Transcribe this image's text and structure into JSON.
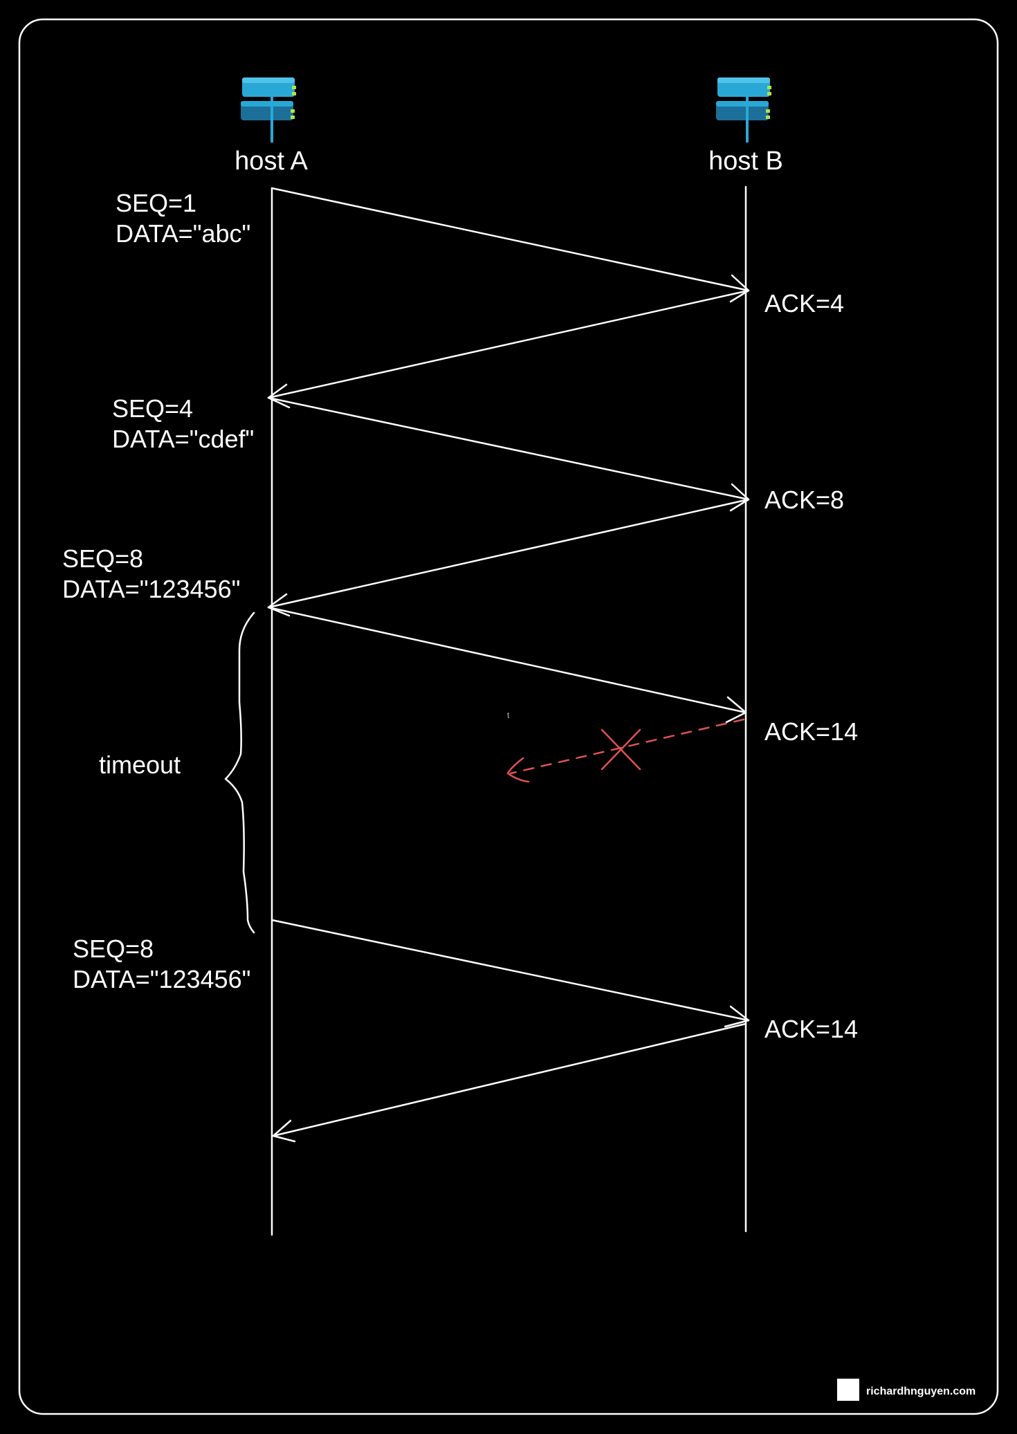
{
  "hosts": {
    "a": {
      "label": "host A",
      "icon": "server-icon"
    },
    "b": {
      "label": "host B",
      "icon": "server-icon"
    }
  },
  "segments": [
    {
      "seq": "SEQ=1",
      "data": "DATA=\"abc\""
    },
    {
      "seq": "SEQ=4",
      "data": "DATA=\"cdef\""
    },
    {
      "seq": "SEQ=8",
      "data": "DATA=\"123456\""
    },
    {
      "seq": "SEQ=8",
      "data": "DATA=\"123456\""
    }
  ],
  "acks": [
    "ACK=4",
    "ACK=8",
    "ACK=14",
    "ACK=14"
  ],
  "timeout_label": "timeout",
  "lost_mark": "t",
  "watermark": "richardhnguyen.com",
  "colors": {
    "background": "#000000",
    "line": "#ffffff",
    "lost": "#e05252",
    "icon_primary": "#29a8d6",
    "icon_dark": "#1b6f98",
    "icon_accent": "#b5e04a"
  }
}
